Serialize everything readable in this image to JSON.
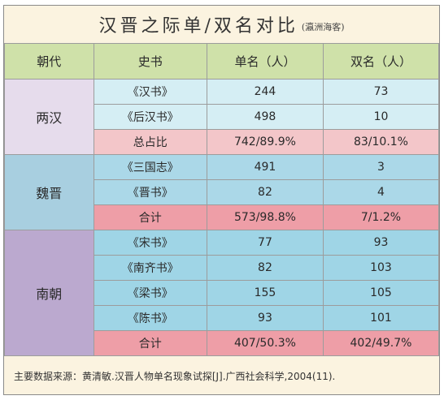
{
  "title": "汉晋之际单/双名对比",
  "subtitle": "(瀛洲海客)",
  "headers": {
    "dynasty": "朝代",
    "book": "史书",
    "single": "单名（人）",
    "double": "双名（人）"
  },
  "groups": [
    {
      "dynasty": "两汉",
      "rows": [
        {
          "book": "《汉书》",
          "single": "244",
          "double": "73"
        },
        {
          "book": "《后汉书》",
          "single": "498",
          "double": "10"
        }
      ],
      "total": {
        "label": "总占比",
        "single": "742/89.9%",
        "double": "83/10.1%"
      }
    },
    {
      "dynasty": "魏晋",
      "rows": [
        {
          "book": "《三国志》",
          "single": "491",
          "double": "3"
        },
        {
          "book": "《晋书》",
          "single": "82",
          "double": "4"
        }
      ],
      "total": {
        "label": "合计",
        "single": "573/98.8%",
        "double": "7/1.2%"
      }
    },
    {
      "dynasty": "南朝",
      "rows": [
        {
          "book": "《宋书》",
          "single": "77",
          "double": "93"
        },
        {
          "book": "《南齐书》",
          "single": "82",
          "double": "103"
        },
        {
          "book": "《梁书》",
          "single": "155",
          "double": "105"
        },
        {
          "book": "《陈书》",
          "single": "93",
          "double": "101"
        }
      ],
      "total": {
        "label": "合计",
        "single": "407/50.3%",
        "double": "402/49.7%"
      }
    }
  ],
  "source": "主要数据来源：黄清敏.汉晋人物单名现象试探[J].广西社会科学,2004(11)."
}
